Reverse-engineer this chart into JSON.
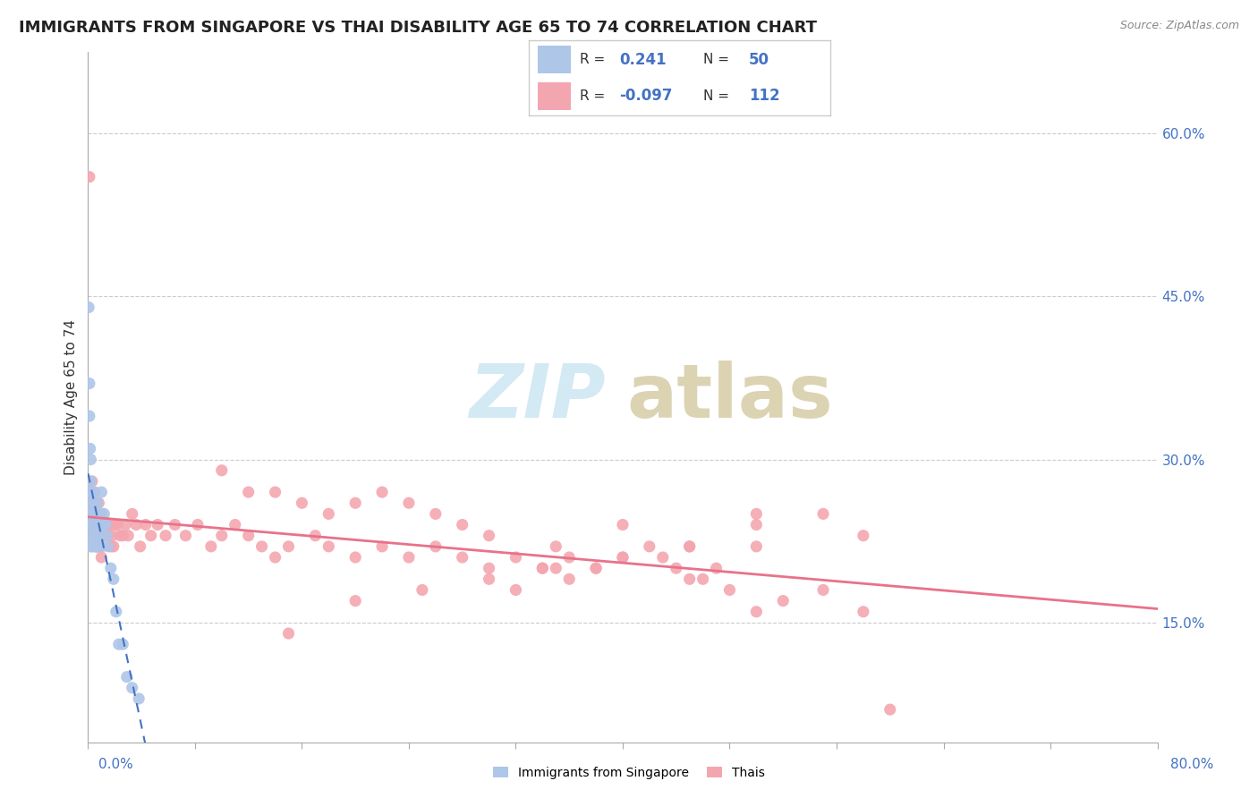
{
  "title": "IMMIGRANTS FROM SINGAPORE VS THAI DISABILITY AGE 65 TO 74 CORRELATION CHART",
  "source": "Source: ZipAtlas.com",
  "ylabel": "Disability Age 65 to 74",
  "right_yticks": [
    "60.0%",
    "45.0%",
    "30.0%",
    "15.0%"
  ],
  "right_ytick_vals": [
    0.6,
    0.45,
    0.3,
    0.15
  ],
  "xmin": 0.0,
  "xmax": 0.8,
  "ymin": 0.04,
  "ymax": 0.675,
  "singapore_R": 0.241,
  "singapore_N": 50,
  "thai_R": -0.097,
  "thai_N": 112,
  "singapore_color": "#aec6e8",
  "thai_color": "#f4a6b0",
  "singapore_trend_color": "#4472c4",
  "thai_trend_color": "#e8728a",
  "legend_box_color_singapore": "#aec6e8",
  "legend_box_color_thai": "#f4a6b0",
  "watermark_zip_color": "#c8e4f0",
  "watermark_atlas_color": "#d4c8a0",
  "sg_x": [
    0.0005,
    0.001,
    0.001,
    0.001,
    0.0015,
    0.0015,
    0.002,
    0.002,
    0.002,
    0.002,
    0.0025,
    0.0025,
    0.003,
    0.003,
    0.003,
    0.003,
    0.003,
    0.0035,
    0.004,
    0.004,
    0.004,
    0.0045,
    0.005,
    0.005,
    0.005,
    0.006,
    0.006,
    0.006,
    0.007,
    0.007,
    0.007,
    0.008,
    0.008,
    0.009,
    0.009,
    0.01,
    0.01,
    0.011,
    0.012,
    0.013,
    0.014,
    0.015,
    0.017,
    0.019,
    0.021,
    0.023,
    0.026,
    0.029,
    0.033,
    0.038
  ],
  "sg_y": [
    0.44,
    0.37,
    0.34,
    0.27,
    0.31,
    0.25,
    0.3,
    0.28,
    0.25,
    0.22,
    0.27,
    0.24,
    0.26,
    0.25,
    0.24,
    0.23,
    0.22,
    0.25,
    0.27,
    0.25,
    0.23,
    0.24,
    0.26,
    0.24,
    0.22,
    0.25,
    0.24,
    0.22,
    0.26,
    0.24,
    0.22,
    0.25,
    0.23,
    0.25,
    0.23,
    0.27,
    0.22,
    0.24,
    0.25,
    0.24,
    0.23,
    0.22,
    0.2,
    0.19,
    0.16,
    0.13,
    0.13,
    0.1,
    0.09,
    0.08
  ],
  "th_x": [
    0.001,
    0.002,
    0.002,
    0.003,
    0.003,
    0.004,
    0.004,
    0.004,
    0.005,
    0.005,
    0.005,
    0.006,
    0.006,
    0.006,
    0.007,
    0.007,
    0.007,
    0.008,
    0.008,
    0.008,
    0.009,
    0.009,
    0.01,
    0.01,
    0.01,
    0.011,
    0.012,
    0.013,
    0.014,
    0.015,
    0.016,
    0.017,
    0.018,
    0.019,
    0.02,
    0.022,
    0.024,
    0.026,
    0.028,
    0.03,
    0.033,
    0.036,
    0.039,
    0.043,
    0.047,
    0.052,
    0.058,
    0.065,
    0.073,
    0.082,
    0.092,
    0.1,
    0.11,
    0.12,
    0.13,
    0.14,
    0.15,
    0.17,
    0.18,
    0.2,
    0.22,
    0.24,
    0.26,
    0.28,
    0.3,
    0.32,
    0.34,
    0.36,
    0.38,
    0.4,
    0.1,
    0.12,
    0.14,
    0.16,
    0.18,
    0.2,
    0.22,
    0.24,
    0.26,
    0.28,
    0.3,
    0.35,
    0.4,
    0.45,
    0.5,
    0.55,
    0.58,
    0.5,
    0.45,
    0.4,
    0.35,
    0.3,
    0.25,
    0.2,
    0.15,
    0.5,
    0.52,
    0.48,
    0.46,
    0.44,
    0.42,
    0.38,
    0.36,
    0.34,
    0.32,
    0.5,
    0.55,
    0.58,
    0.6,
    0.45,
    0.47,
    0.43
  ],
  "th_y": [
    0.56,
    0.26,
    0.24,
    0.28,
    0.25,
    0.26,
    0.24,
    0.23,
    0.27,
    0.25,
    0.23,
    0.26,
    0.24,
    0.22,
    0.25,
    0.23,
    0.22,
    0.26,
    0.24,
    0.23,
    0.25,
    0.22,
    0.25,
    0.23,
    0.21,
    0.23,
    0.24,
    0.23,
    0.24,
    0.23,
    0.24,
    0.22,
    0.23,
    0.22,
    0.24,
    0.24,
    0.23,
    0.23,
    0.24,
    0.23,
    0.25,
    0.24,
    0.22,
    0.24,
    0.23,
    0.24,
    0.23,
    0.24,
    0.23,
    0.24,
    0.22,
    0.23,
    0.24,
    0.23,
    0.22,
    0.21,
    0.22,
    0.23,
    0.22,
    0.21,
    0.22,
    0.21,
    0.22,
    0.21,
    0.2,
    0.21,
    0.2,
    0.21,
    0.2,
    0.21,
    0.29,
    0.27,
    0.27,
    0.26,
    0.25,
    0.26,
    0.27,
    0.26,
    0.25,
    0.24,
    0.23,
    0.22,
    0.24,
    0.22,
    0.22,
    0.18,
    0.16,
    0.25,
    0.22,
    0.21,
    0.2,
    0.19,
    0.18,
    0.17,
    0.14,
    0.16,
    0.17,
    0.18,
    0.19,
    0.2,
    0.22,
    0.2,
    0.19,
    0.2,
    0.18,
    0.24,
    0.25,
    0.23,
    0.07,
    0.19,
    0.2,
    0.21
  ]
}
